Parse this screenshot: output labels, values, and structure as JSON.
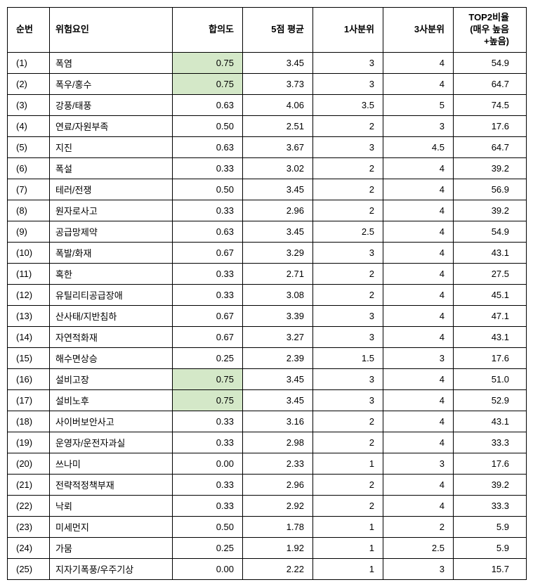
{
  "table": {
    "highlight_color": "#d4e8c8",
    "border_color": "#000000",
    "background_color": "#ffffff",
    "font_size": 13,
    "headers": {
      "rank": "순번",
      "factor": "위험요인",
      "consensus": "합의도",
      "mean": "5점 평균",
      "q1": "1사분위",
      "q3": "3사분위",
      "top2": "TOP2비율\n(매우 높음\n+높음)"
    },
    "rows": [
      {
        "rank": "(1)",
        "factor": "폭염",
        "consensus": "0.75",
        "mean": "3.45",
        "q1": "3",
        "q3": "4",
        "top2": "54.9",
        "highlight": true
      },
      {
        "rank": "(2)",
        "factor": "폭우/홍수",
        "consensus": "0.75",
        "mean": "3.73",
        "q1": "3",
        "q3": "4",
        "top2": "64.7",
        "highlight": true
      },
      {
        "rank": "(3)",
        "factor": "강풍/태풍",
        "consensus": "0.63",
        "mean": "4.06",
        "q1": "3.5",
        "q3": "5",
        "top2": "74.5",
        "highlight": false
      },
      {
        "rank": "(4)",
        "factor": "연료/자원부족",
        "consensus": "0.50",
        "mean": "2.51",
        "q1": "2",
        "q3": "3",
        "top2": "17.6",
        "highlight": false
      },
      {
        "rank": "(5)",
        "factor": "지진",
        "consensus": "0.63",
        "mean": "3.67",
        "q1": "3",
        "q3": "4.5",
        "top2": "64.7",
        "highlight": false
      },
      {
        "rank": "(6)",
        "factor": "폭설",
        "consensus": "0.33",
        "mean": "3.02",
        "q1": "2",
        "q3": "4",
        "top2": "39.2",
        "highlight": false
      },
      {
        "rank": "(7)",
        "factor": "테러/전쟁",
        "consensus": "0.50",
        "mean": "3.45",
        "q1": "2",
        "q3": "4",
        "top2": "56.9",
        "highlight": false
      },
      {
        "rank": "(8)",
        "factor": "원자로사고",
        "consensus": "0.33",
        "mean": "2.96",
        "q1": "2",
        "q3": "4",
        "top2": "39.2",
        "highlight": false
      },
      {
        "rank": "(9)",
        "factor": "공급망제약",
        "consensus": "0.63",
        "mean": "3.45",
        "q1": "2.5",
        "q3": "4",
        "top2": "54.9",
        "highlight": false
      },
      {
        "rank": "(10)",
        "factor": "폭발/화재",
        "consensus": "0.67",
        "mean": "3.29",
        "q1": "3",
        "q3": "4",
        "top2": "43.1",
        "highlight": false
      },
      {
        "rank": "(11)",
        "factor": "혹한",
        "consensus": "0.33",
        "mean": "2.71",
        "q1": "2",
        "q3": "4",
        "top2": "27.5",
        "highlight": false
      },
      {
        "rank": "(12)",
        "factor": "유틸리티공급장애",
        "consensus": "0.33",
        "mean": "3.08",
        "q1": "2",
        "q3": "4",
        "top2": "45.1",
        "highlight": false
      },
      {
        "rank": "(13)",
        "factor": "산사태/지반침하",
        "consensus": "0.67",
        "mean": "3.39",
        "q1": "3",
        "q3": "4",
        "top2": "47.1",
        "highlight": false
      },
      {
        "rank": "(14)",
        "factor": "자연적화재",
        "consensus": "0.67",
        "mean": "3.27",
        "q1": "3",
        "q3": "4",
        "top2": "43.1",
        "highlight": false
      },
      {
        "rank": "(15)",
        "factor": "해수면상승",
        "consensus": "0.25",
        "mean": "2.39",
        "q1": "1.5",
        "q3": "3",
        "top2": "17.6",
        "highlight": false
      },
      {
        "rank": "(16)",
        "factor": "설비고장",
        "consensus": "0.75",
        "mean": "3.45",
        "q1": "3",
        "q3": "4",
        "top2": "51.0",
        "highlight": true
      },
      {
        "rank": "(17)",
        "factor": "설비노후",
        "consensus": "0.75",
        "mean": "3.45",
        "q1": "3",
        "q3": "4",
        "top2": "52.9",
        "highlight": true
      },
      {
        "rank": "(18)",
        "factor": "사이버보안사고",
        "consensus": "0.33",
        "mean": "3.16",
        "q1": "2",
        "q3": "4",
        "top2": "43.1",
        "highlight": false
      },
      {
        "rank": "(19)",
        "factor": "운영자/운전자과실",
        "consensus": "0.33",
        "mean": "2.98",
        "q1": "2",
        "q3": "4",
        "top2": "33.3",
        "highlight": false
      },
      {
        "rank": "(20)",
        "factor": "쓰나미",
        "consensus": "0.00",
        "mean": "2.33",
        "q1": "1",
        "q3": "3",
        "top2": "17.6",
        "highlight": false
      },
      {
        "rank": "(21)",
        "factor": "전략적정책부재",
        "consensus": "0.33",
        "mean": "2.96",
        "q1": "2",
        "q3": "4",
        "top2": "39.2",
        "highlight": false
      },
      {
        "rank": "(22)",
        "factor": "낙뢰",
        "consensus": "0.33",
        "mean": "2.92",
        "q1": "2",
        "q3": "4",
        "top2": "33.3",
        "highlight": false
      },
      {
        "rank": "(23)",
        "factor": "미세먼지",
        "consensus": "0.50",
        "mean": "1.78",
        "q1": "1",
        "q3": "2",
        "top2": "5.9",
        "highlight": false
      },
      {
        "rank": "(24)",
        "factor": "가뭄",
        "consensus": "0.25",
        "mean": "1.92",
        "q1": "1",
        "q3": "2.5",
        "top2": "5.9",
        "highlight": false
      },
      {
        "rank": "(25)",
        "factor": "지자기폭풍/우주기상",
        "consensus": "0.00",
        "mean": "2.22",
        "q1": "1",
        "q3": "3",
        "top2": "15.7",
        "highlight": false
      }
    ]
  }
}
